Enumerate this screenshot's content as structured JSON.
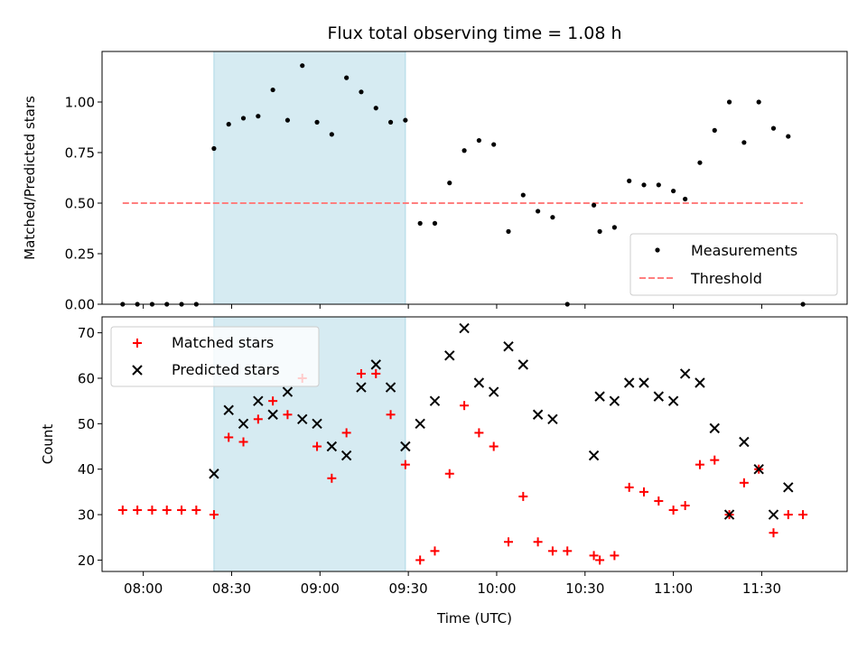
{
  "chart_data": [
    {
      "type": "scatter",
      "title": "Flux total observing time = 1.08 h",
      "xlabel": "",
      "ylabel": "Matched/Predicted stars",
      "xlim": [
        "07:46",
        "11:59"
      ],
      "ylim": [
        0,
        1.25
      ],
      "yticks": [
        0.0,
        0.25,
        0.5,
        0.75,
        1.0
      ],
      "ytick_labels": [
        "0.00",
        "0.25",
        "0.50",
        "0.75",
        "1.00"
      ],
      "grid": false,
      "legend_position": "lower-right",
      "shaded_interval": {
        "start": "08:24",
        "end": "09:29",
        "color": "#add8e6"
      },
      "series": [
        {
          "name": "Measurements",
          "kind": "scatter",
          "marker": "dot",
          "color": "#000000",
          "points": [
            [
              "07:53",
              0.0
            ],
            [
              "07:58",
              0.0
            ],
            [
              "08:03",
              0.0
            ],
            [
              "08:08",
              0.0
            ],
            [
              "08:13",
              0.0
            ],
            [
              "08:18",
              0.0
            ],
            [
              "08:24",
              0.77
            ],
            [
              "08:29",
              0.89
            ],
            [
              "08:34",
              0.92
            ],
            [
              "08:39",
              0.93
            ],
            [
              "08:44",
              1.06
            ],
            [
              "08:49",
              0.91
            ],
            [
              "08:54",
              1.18
            ],
            [
              "08:59",
              0.9
            ],
            [
              "09:04",
              0.84
            ],
            [
              "09:09",
              1.12
            ],
            [
              "09:14",
              1.05
            ],
            [
              "09:19",
              0.97
            ],
            [
              "09:24",
              0.9
            ],
            [
              "09:29",
              0.91
            ],
            [
              "09:34",
              0.4
            ],
            [
              "09:39",
              0.4
            ],
            [
              "09:44",
              0.6
            ],
            [
              "09:49",
              0.76
            ],
            [
              "09:54",
              0.81
            ],
            [
              "09:59",
              0.79
            ],
            [
              "10:04",
              0.36
            ],
            [
              "10:09",
              0.54
            ],
            [
              "10:14",
              0.46
            ],
            [
              "10:19",
              0.43
            ],
            [
              "10:24",
              0.0
            ],
            [
              "10:33",
              0.49
            ],
            [
              "10:35",
              0.36
            ],
            [
              "10:40",
              0.38
            ],
            [
              "10:45",
              0.61
            ],
            [
              "10:50",
              0.59
            ],
            [
              "10:55",
              0.59
            ],
            [
              "11:00",
              0.56
            ],
            [
              "11:04",
              0.52
            ],
            [
              "11:09",
              0.7
            ],
            [
              "11:14",
              0.86
            ],
            [
              "11:19",
              1.0
            ],
            [
              "11:24",
              0.8
            ],
            [
              "11:29",
              1.0
            ],
            [
              "11:34",
              0.87
            ],
            [
              "11:39",
              0.83
            ],
            [
              "11:44",
              0.0
            ]
          ]
        },
        {
          "name": "Threshold",
          "kind": "line",
          "style": "dashed",
          "color": "#ff7f7f",
          "points": [
            [
              "07:53",
              0.5
            ],
            [
              "11:44",
              0.5
            ]
          ]
        }
      ]
    },
    {
      "type": "scatter",
      "title": "",
      "xlabel": "Time (UTC)",
      "ylabel": "Count",
      "xlim": [
        "07:46",
        "11:59"
      ],
      "ylim": [
        17.5,
        73.5
      ],
      "yticks": [
        20,
        30,
        40,
        50,
        60,
        70
      ],
      "ytick_labels": [
        "20",
        "30",
        "40",
        "50",
        "60",
        "70"
      ],
      "xticks": [
        "08:00",
        "08:30",
        "09:00",
        "09:30",
        "10:00",
        "10:30",
        "11:00",
        "11:30"
      ],
      "xtick_labels": [
        "08:00",
        "08:30",
        "09:00",
        "09:30",
        "10:00",
        "10:30",
        "11:00",
        "11:30"
      ],
      "grid": false,
      "legend_position": "upper-left",
      "shaded_interval": {
        "start": "08:24",
        "end": "09:29",
        "color": "#add8e6"
      },
      "series": [
        {
          "name": "Matched stars",
          "kind": "scatter",
          "marker": "plus",
          "color": "#ff0000",
          "points": [
            [
              "07:53",
              31
            ],
            [
              "07:58",
              31
            ],
            [
              "08:03",
              31
            ],
            [
              "08:08",
              31
            ],
            [
              "08:13",
              31
            ],
            [
              "08:18",
              31
            ],
            [
              "08:24",
              30
            ],
            [
              "08:29",
              47
            ],
            [
              "08:34",
              46
            ],
            [
              "08:39",
              51
            ],
            [
              "08:44",
              55
            ],
            [
              "08:49",
              52
            ],
            [
              "08:54",
              60
            ],
            [
              "08:59",
              45
            ],
            [
              "09:04",
              38
            ],
            [
              "09:09",
              48
            ],
            [
              "09:14",
              61
            ],
            [
              "09:19",
              61
            ],
            [
              "09:24",
              52
            ],
            [
              "09:29",
              41
            ],
            [
              "09:34",
              20
            ],
            [
              "09:39",
              22
            ],
            [
              "09:44",
              39
            ],
            [
              "09:49",
              54
            ],
            [
              "09:54",
              48
            ],
            [
              "09:59",
              45
            ],
            [
              "10:04",
              24
            ],
            [
              "10:09",
              34
            ],
            [
              "10:14",
              24
            ],
            [
              "10:19",
              22
            ],
            [
              "10:24",
              22
            ],
            [
              "10:33",
              21
            ],
            [
              "10:35",
              20
            ],
            [
              "10:40",
              21
            ],
            [
              "10:45",
              36
            ],
            [
              "10:50",
              35
            ],
            [
              "10:55",
              33
            ],
            [
              "11:00",
              31
            ],
            [
              "11:04",
              32
            ],
            [
              "11:09",
              41
            ],
            [
              "11:14",
              42
            ],
            [
              "11:19",
              30
            ],
            [
              "11:24",
              37
            ],
            [
              "11:29",
              40
            ],
            [
              "11:34",
              26
            ],
            [
              "11:39",
              30
            ],
            [
              "11:44",
              30
            ]
          ]
        },
        {
          "name": "Predicted stars",
          "kind": "scatter",
          "marker": "x",
          "color": "#000000",
          "points": [
            [
              "08:24",
              39
            ],
            [
              "08:29",
              53
            ],
            [
              "08:34",
              50
            ],
            [
              "08:39",
              55
            ],
            [
              "08:44",
              52
            ],
            [
              "08:49",
              57
            ],
            [
              "08:54",
              51
            ],
            [
              "08:59",
              50
            ],
            [
              "09:04",
              45
            ],
            [
              "09:09",
              43
            ],
            [
              "09:14",
              58
            ],
            [
              "09:19",
              63
            ],
            [
              "09:24",
              58
            ],
            [
              "09:29",
              45
            ],
            [
              "09:34",
              50
            ],
            [
              "09:39",
              55
            ],
            [
              "09:44",
              65
            ],
            [
              "09:49",
              71
            ],
            [
              "09:54",
              59
            ],
            [
              "09:59",
              57
            ],
            [
              "10:04",
              67
            ],
            [
              "10:09",
              63
            ],
            [
              "10:14",
              52
            ],
            [
              "10:19",
              51
            ],
            [
              "10:33",
              43
            ],
            [
              "10:35",
              56
            ],
            [
              "10:40",
              55
            ],
            [
              "10:45",
              59
            ],
            [
              "10:50",
              59
            ],
            [
              "10:55",
              56
            ],
            [
              "11:00",
              55
            ],
            [
              "11:04",
              61
            ],
            [
              "11:09",
              59
            ],
            [
              "11:14",
              49
            ],
            [
              "11:19",
              30
            ],
            [
              "11:24",
              46
            ],
            [
              "11:29",
              40
            ],
            [
              "11:34",
              30
            ],
            [
              "11:39",
              36
            ]
          ]
        }
      ]
    }
  ]
}
